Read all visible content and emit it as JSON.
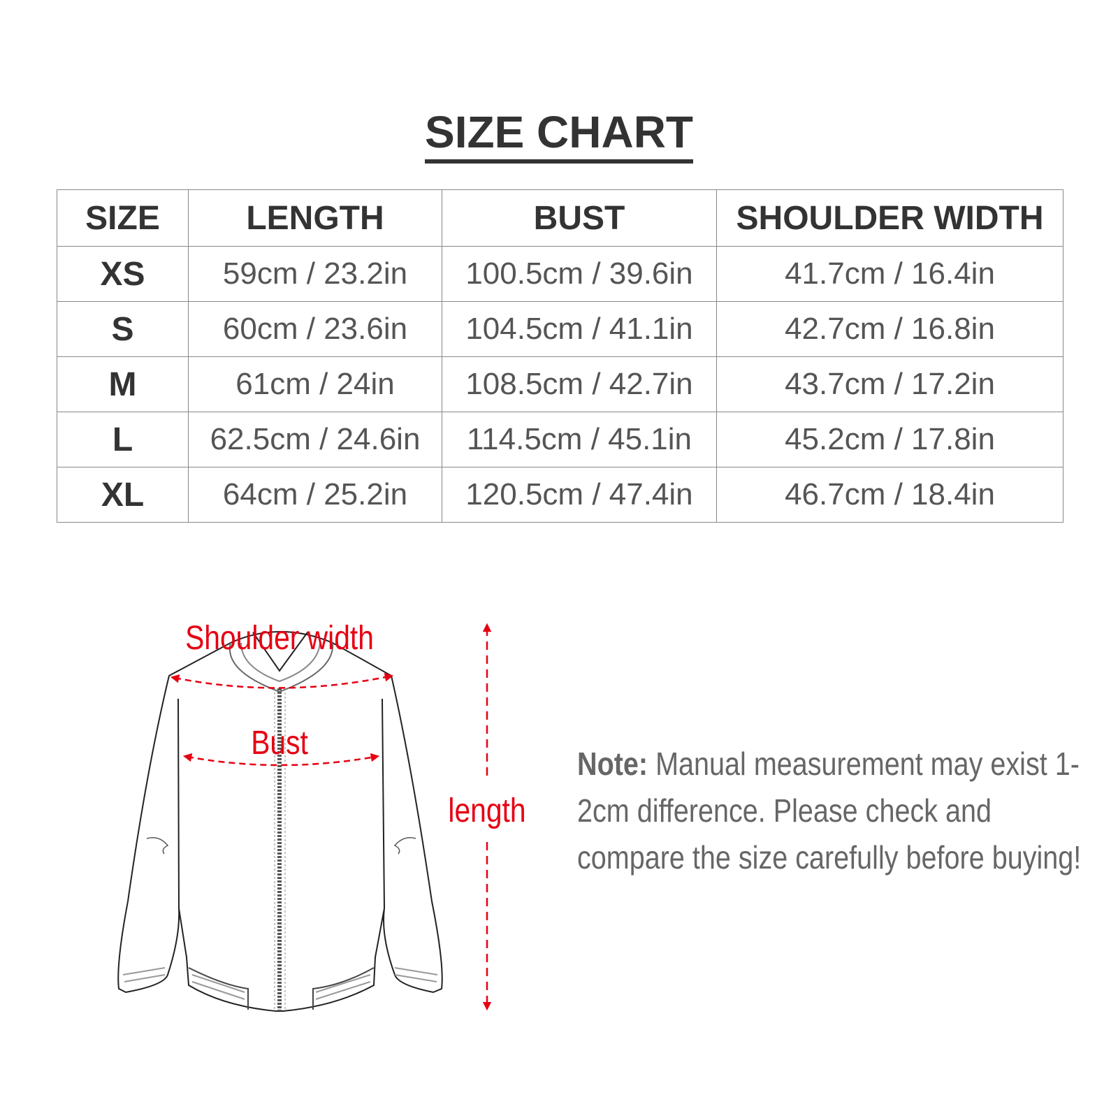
{
  "title": "SIZE CHART",
  "table": {
    "headers": [
      "SIZE",
      "LENGTH",
      "BUST",
      "SHOULDER WIDTH"
    ],
    "rows": [
      [
        "XS",
        "59cm / 23.2in",
        "100.5cm / 39.6in",
        "41.7cm / 16.4in"
      ],
      [
        "S",
        "60cm / 23.6in",
        "104.5cm / 41.1in",
        "42.7cm / 16.8in"
      ],
      [
        "M",
        "61cm / 24in",
        "108.5cm / 42.7in",
        "43.7cm / 17.2in"
      ],
      [
        "L",
        "62.5cm / 24.6in",
        "114.5cm / 45.1in",
        "45.2cm / 17.8in"
      ],
      [
        "XL",
        "64cm / 25.2in",
        "120.5cm / 47.4in",
        "46.7cm / 18.4in"
      ]
    ]
  },
  "diagram": {
    "shoulder_label": "Shoulder width",
    "bust_label": "Bust",
    "length_label": "length",
    "accent": "#e60012"
  },
  "note": {
    "label": "Note:",
    "text": " Manual measurement may exist 1-2cm difference. Please check and compare the size carefully before buying!"
  }
}
